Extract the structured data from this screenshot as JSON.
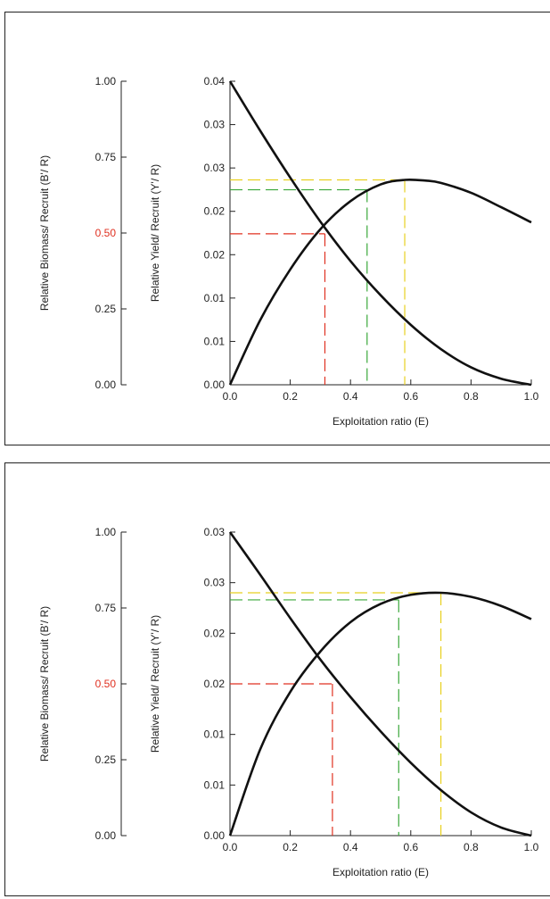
{
  "chart_data": [
    {
      "type": "line",
      "title": "",
      "xlabel": "Exploitation ratio (E)",
      "ylabel_left": "Relative Biomass/ Recruit (B'/ R)",
      "ylabel_right": "Relative Yield/ Recruit (Y'/ R)",
      "xlim": [
        0,
        1
      ],
      "ylim_left": [
        0,
        1
      ],
      "ylim_right": [
        0,
        0.04
      ],
      "x_ticks": [
        "0.0",
        "0.2",
        "0.4",
        "0.6",
        "0.8",
        "1.0"
      ],
      "left_ticks": [
        "0.00",
        "0.25",
        "0.50",
        "0.75",
        "1.00"
      ],
      "left_tick_highlight": "0.50",
      "right_ticks": [
        "0.00",
        "0.01",
        "0.01",
        "0.02",
        "0.02",
        "0.03",
        "0.03",
        "0.04"
      ],
      "series": [
        {
          "x": [
            0,
            0.1,
            0.2,
            0.3,
            0.4,
            0.5,
            0.6,
            0.7,
            0.8,
            0.9,
            1.0
          ],
          "y": [
            0.04,
            0.0335,
            0.0273,
            0.0215,
            0.0163,
            0.0118,
            0.0079,
            0.0047,
            0.0023,
            0.0008,
            0.0
          ]
        },
        {
          "x": [
            0,
            0.1,
            0.2,
            0.3,
            0.4,
            0.5,
            0.58,
            0.65,
            0.7,
            0.8,
            0.9,
            1.0
          ],
          "y": [
            0.0,
            0.0085,
            0.0152,
            0.0205,
            0.0242,
            0.0264,
            0.027,
            0.0269,
            0.0266,
            0.0253,
            0.0234,
            0.0214
          ]
        }
      ],
      "reference_lines": [
        {
          "color": "#e03020",
          "x": 0.315,
          "y": 0.0199
        },
        {
          "color": "#3aa83a",
          "x": 0.455,
          "y": 0.0257
        },
        {
          "color": "#e8d020",
          "x": 0.58,
          "y": 0.027
        }
      ]
    },
    {
      "type": "line",
      "title": "",
      "xlabel": "Exploitation ratio (E)",
      "ylabel_left": "Relative Biomass/ Recruit (B'/ R)",
      "ylabel_right": "Relative Yield/ Recruit (Y'/ R)",
      "xlim": [
        0,
        1
      ],
      "ylim_left": [
        0,
        1
      ],
      "ylim_right": [
        0,
        0.03
      ],
      "x_ticks": [
        "0.0",
        "0.2",
        "0.4",
        "0.6",
        "0.8",
        "1.0"
      ],
      "left_ticks": [
        "0.00",
        "0.25",
        "0.50",
        "0.75",
        "1.00"
      ],
      "left_tick_highlight": "0.50",
      "right_ticks": [
        "0.00",
        "0.01",
        "0.01",
        "0.02",
        "0.02",
        "0.03",
        "0.03"
      ],
      "series": [
        {
          "x": [
            0,
            0.1,
            0.2,
            0.3,
            0.4,
            0.5,
            0.6,
            0.7,
            0.8,
            0.9,
            1.0
          ],
          "y": [
            0.03,
            0.0258,
            0.0215,
            0.0174,
            0.0137,
            0.0103,
            0.0072,
            0.0045,
            0.0023,
            0.0008,
            0.0
          ]
        },
        {
          "x": [
            0,
            0.1,
            0.2,
            0.3,
            0.4,
            0.5,
            0.6,
            0.7,
            0.8,
            0.9,
            1.0
          ],
          "y": [
            0.0,
            0.0085,
            0.0142,
            0.0182,
            0.0211,
            0.0229,
            0.0238,
            0.024,
            0.0236,
            0.0227,
            0.0214
          ]
        }
      ],
      "reference_lines": [
        {
          "color": "#e03020",
          "x": 0.34,
          "y": 0.015
        },
        {
          "color": "#3aa83a",
          "x": 0.56,
          "y": 0.0233
        },
        {
          "color": "#e8d020",
          "x": 0.7,
          "y": 0.024
        }
      ]
    }
  ]
}
